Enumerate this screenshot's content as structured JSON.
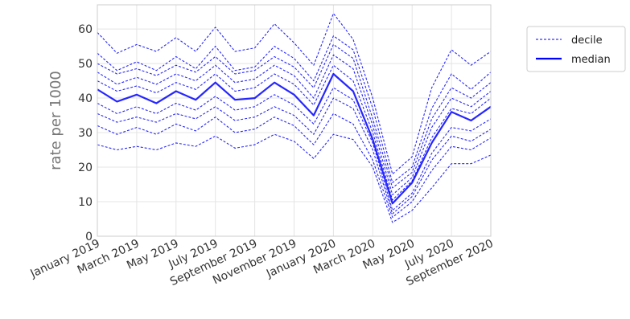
{
  "chart_data": {
    "type": "line",
    "title": "",
    "xlabel": "",
    "ylabel": "rate per 1000",
    "ylim": [
      0,
      67
    ],
    "yticks": [
      0,
      10,
      20,
      30,
      40,
      50,
      60
    ],
    "grid": true,
    "legend": {
      "position": "top-right-outside",
      "entries": [
        "decile",
        "median"
      ]
    },
    "x": [
      "January 2019",
      "February 2019",
      "March 2019",
      "April 2019",
      "May 2019",
      "June 2019",
      "July 2019",
      "August 2019",
      "September 2019",
      "October 2019",
      "November 2019",
      "December 2019",
      "January 2020",
      "February 2020",
      "March 2020",
      "April 2020",
      "May 2020",
      "June 2020",
      "July 2020",
      "August 2020",
      "September 2020"
    ],
    "xtick_labels": [
      "January 2019",
      "March 2019",
      "May 2019",
      "July 2019",
      "September 2019",
      "November 2019",
      "January 2020",
      "March 2020",
      "May 2020",
      "July 2020",
      "September 2020"
    ],
    "series": [
      {
        "name": "decile",
        "style": "dashed",
        "values": [
          26.5,
          25,
          26,
          25,
          27,
          26,
          29,
          25.5,
          26.5,
          29.5,
          27.5,
          22.5,
          29.5,
          28,
          20,
          4,
          7.5,
          14,
          21,
          21,
          23.5
        ]
      },
      {
        "name": "decile",
        "style": "dashed",
        "values": [
          32,
          29.5,
          31.5,
          29.5,
          32.5,
          30.5,
          34.5,
          30,
          31,
          34.5,
          32,
          26.5,
          35.5,
          32.5,
          22,
          5.5,
          10,
          19,
          26,
          25,
          28.5
        ]
      },
      {
        "name": "decile",
        "style": "dashed",
        "values": [
          35.5,
          33,
          34.5,
          33,
          35.5,
          34,
          37.5,
          33.5,
          34.5,
          37.5,
          35,
          29.5,
          40,
          37,
          25,
          6.5,
          11.5,
          22,
          29,
          27.5,
          31
        ]
      },
      {
        "name": "decile",
        "style": "dashed",
        "values": [
          38.5,
          35.5,
          37.5,
          35.5,
          38.5,
          36.5,
          40.5,
          36.5,
          37.5,
          41,
          38,
          32.5,
          43,
          39.5,
          27,
          7.5,
          12.5,
          24,
          31.5,
          30.5,
          34
        ]
      },
      {
        "name": "decile",
        "style": "dashed",
        "values": [
          45,
          42,
          43.5,
          41.5,
          44.5,
          42.5,
          47,
          42,
          43,
          47,
          44,
          38,
          49.5,
          45,
          30,
          10.5,
          16,
          28.5,
          37,
          35.5,
          40
        ]
      },
      {
        "name": "decile",
        "style": "dashed",
        "values": [
          47.5,
          44,
          46,
          44,
          47,
          45,
          49.5,
          44.5,
          45.5,
          49.5,
          46.5,
          40,
          52.5,
          48.5,
          32,
          12,
          17,
          31.5,
          40,
          37.5,
          42
        ]
      },
      {
        "name": "decile",
        "style": "dashed",
        "values": [
          50,
          47,
          48.5,
          46.5,
          49.5,
          47.5,
          52,
          47,
          48,
          52,
          49,
          43,
          55.5,
          51.5,
          34,
          14,
          18.5,
          34,
          43,
          40,
          44.5
        ]
      },
      {
        "name": "decile",
        "style": "dashed",
        "values": [
          53,
          48,
          50.5,
          48,
          52,
          48.5,
          55,
          48,
          49,
          55,
          51.5,
          45,
          58,
          54,
          37,
          15.5,
          20,
          37,
          47,
          42.5,
          47.5
        ]
      },
      {
        "name": "decile",
        "style": "dashed",
        "values": [
          59,
          53,
          55.5,
          53.5,
          57.5,
          53.5,
          60.5,
          53.5,
          54.5,
          61.5,
          56,
          49.5,
          64.5,
          57,
          40,
          18,
          23,
          43,
          54,
          49.5,
          53.5
        ]
      },
      {
        "name": "median",
        "style": "solid",
        "values": [
          42.5,
          39,
          41,
          38.5,
          42,
          39.5,
          44.5,
          39.5,
          40,
          44.5,
          41,
          35,
          47,
          42,
          28,
          9.5,
          15.5,
          27,
          36,
          33.5,
          37.5
        ]
      }
    ],
    "colors": {
      "line": "#0000ff",
      "grid": "#e4e4e4",
      "frame": "#cccccc"
    }
  }
}
